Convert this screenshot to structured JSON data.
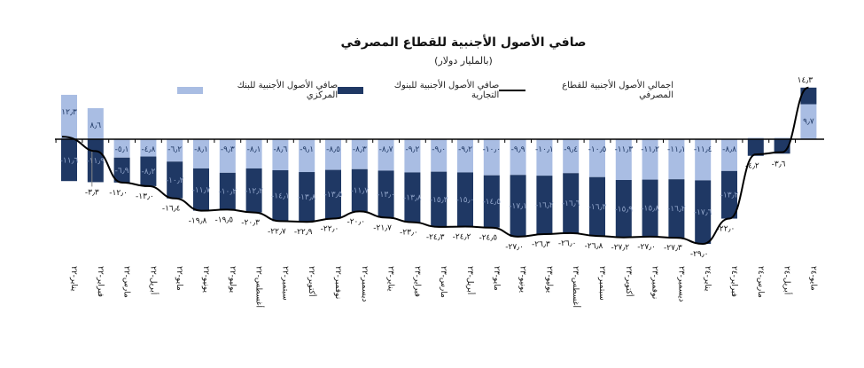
{
  "chart_data": {
    "type": "bar",
    "title": "صافي الأصول الأجنبية للقطاع المصرفي",
    "subtitle": "(بالمليار دولار)",
    "xlabel": "",
    "ylabel": "",
    "ylim": [
      -30,
      15
    ],
    "grid": false,
    "legend_position": "top",
    "colors": {
      "central": "#a9bde3",
      "commercial": "#1f3864",
      "total": "#000000"
    },
    "categories": [
      "يناير-٢٢",
      "فبراير-٢٢",
      "مارس-٢٢",
      "أبريل-٢٢",
      "مايو-٢٢",
      "يونيو-٢٢",
      "يوليو-٢٢",
      "أغسطس-٢٢",
      "سبتمبر-٢٢",
      "أكتوبر-٢٢",
      "نوفمبر-٢٢",
      "ديسمبر-٢٢",
      "يناير-٢٣",
      "فبراير-٢٣",
      "مارس-٢٣",
      "أبريل-٢٣",
      "مايو-٢٣",
      "يونيو-٢٣",
      "يوليو-٢٣",
      "أغسطس-٢٣",
      "سبتمبر-٢٣",
      "أكتوبر-٢٣",
      "نوفمبر-٢٣",
      "ديسمبر-٢٣",
      "يناير-٢٤",
      "فبراير-٢٤",
      "مارس-٢٤",
      "أبريل-٢٤",
      "مايو-٢٤"
    ],
    "series": [
      {
        "name": "صافي الأصول الأجنبية للبنك المركزي",
        "type": "bar",
        "values": [
          12.3,
          8.6,
          -5.1,
          -4.8,
          -6.2,
          -8.1,
          -9.3,
          -8.1,
          -8.6,
          -9.1,
          -8.5,
          -8.3,
          -8.7,
          -9.2,
          -9.0,
          -9.2,
          -10.0,
          -9.9,
          -10.1,
          -9.4,
          -10.5,
          -11.3,
          -11.2,
          -11.1,
          -11.4,
          -8.8,
          0.4,
          0.4,
          9.7
        ],
        "labels": [
          "١٢٫٣",
          "٨٫٦",
          "-٥٫١",
          "-٤٫٨",
          "-٦٫٢",
          "-٨٫١",
          "-٩٫٣",
          "-٨٫١",
          "-٨٫٦",
          "-٩٫١",
          "-٨٫٥",
          "-٨٫٣",
          "-٨٫٧",
          "-٩٫٢",
          "-٩٫٠",
          "-٩٫٢",
          "-١٠٫٠",
          "-٩٫٩",
          "-١٠٫١",
          "-٩٫٤",
          "-١٠٫٥",
          "-١١٫٣",
          "-١١٫٢",
          "-١١٫١",
          "-١١٫٤",
          "-٨٫٨",
          "",
          "",
          "٩٫٧"
        ]
      },
      {
        "name": "صافي الأصول الأجنبية للبنوك التجارية",
        "type": "bar",
        "values": [
          -11.6,
          -11.9,
          -6.9,
          -8.2,
          -10.2,
          -11.7,
          -10.2,
          -12.2,
          -14.1,
          -13.8,
          -13.5,
          -11.7,
          -13.0,
          -13.8,
          -15.3,
          -15.0,
          -14.5,
          -17.1,
          -16.2,
          -16.6,
          -16.3,
          -15.9,
          -15.8,
          -16.2,
          -17.6,
          -13.2,
          -4.6,
          -4.0,
          4.6
        ],
        "labels": [
          "-١١٫٦",
          "-١١٫٩",
          "-٦٫٩",
          "-٨٫٢",
          "-١٠٫٢",
          "-١١٫٧",
          "-١٠٫٢",
          "-١٢٫٢",
          "-١٤٫١",
          "-١٣٫٨",
          "-١٣٫٥",
          "-١١٫٧",
          "-١٣٫٠",
          "-١٣٫٨",
          "-١٥٫٣",
          "-١٥٫٠",
          "-١٤٫٥",
          "-١٧٫١",
          "-١٦٫٢",
          "-١٦٫٦",
          "-١٦٫٣",
          "-١٥٫٩",
          "-١٥٫٨",
          "-١٦٫٢",
          "-١٧٫٦",
          "-١٣٫٢",
          "",
          "",
          ""
        ]
      },
      {
        "name": "اجمالي الأصول الأجنبية للقطاع المصرفي",
        "type": "line",
        "values": [
          0.7,
          -3.3,
          -12.0,
          -13.0,
          -16.4,
          -19.8,
          -19.5,
          -20.3,
          -22.7,
          -22.9,
          -22.0,
          -20.0,
          -21.7,
          -23.0,
          -24.3,
          -24.2,
          -24.5,
          -27.0,
          -26.3,
          -26.0,
          -26.8,
          -27.2,
          -27.0,
          -27.3,
          -29.0,
          -22.0,
          -4.2,
          -3.6,
          14.3
        ],
        "labels": [
          "",
          "-٣٫٣",
          "-١٢٫٠",
          "-١٣٫٠",
          "-١٦٫٤",
          "-١٩٫٨",
          "-١٩٫٥",
          "-٢٠٫٣",
          "-٢٢٫٧",
          "-٢٢٫٩",
          "-٢٢٫٠",
          "-٢٠٫٠",
          "-٢١٫٧",
          "-٢٣٫٠",
          "-٢٤٫٣",
          "-٢٤٫٢",
          "-٢٤٫٥",
          "-٢٧٫٠",
          "-٢٦٫٣",
          "-٢٦٫٠",
          "-٢٦٫٨",
          "-٢٧٫٢",
          "-٢٧٫٠",
          "-٢٧٫٣",
          "-٢٩٫٠",
          "-٢٢٫٠",
          "-٤٫٢",
          "-٣٫٦",
          "١٤٫٣"
        ]
      }
    ]
  }
}
